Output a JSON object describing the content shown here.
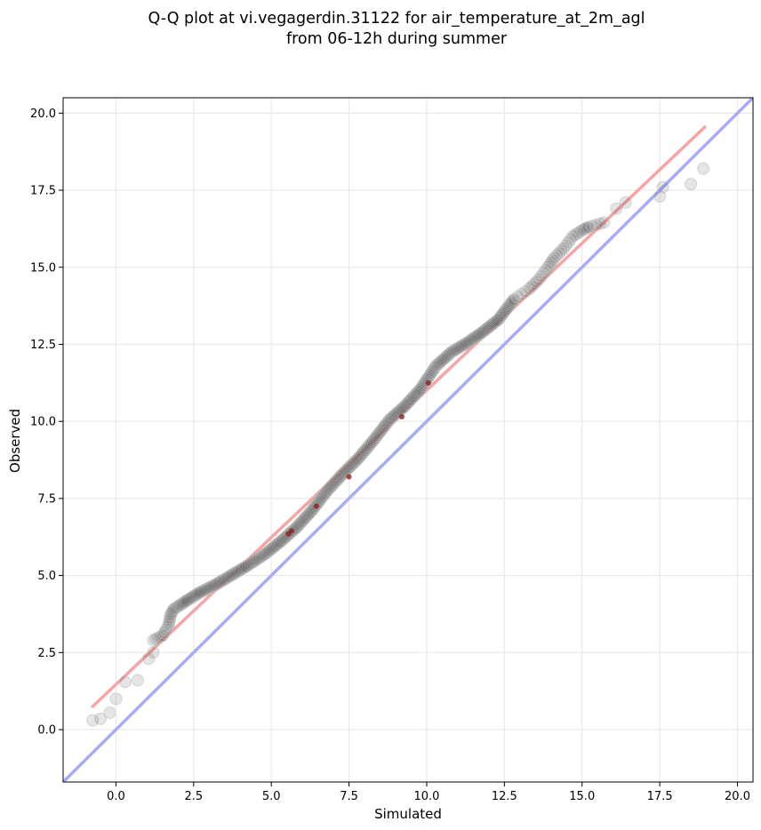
{
  "chart_data": {
    "type": "scatter",
    "title": [
      "Q-Q plot at vi.vegagerdin.31122 for air_temperature_at_2m_agl",
      "from 06-12h during summer"
    ],
    "xlabel": "Simulated",
    "ylabel": "Observed",
    "xlim": [
      -1.7,
      20.5
    ],
    "ylim": [
      -1.7,
      20.5
    ],
    "x_ticks": [
      0.0,
      2.5,
      5.0,
      7.5,
      10.0,
      12.5,
      15.0,
      17.5,
      20.0
    ],
    "x_tick_labels": [
      "0.0",
      "2.5",
      "5.0",
      "7.5",
      "10.0",
      "12.5",
      "15.0",
      "17.5",
      "20.0"
    ],
    "y_ticks": [
      0.0,
      2.5,
      5.0,
      7.5,
      10.0,
      12.5,
      15.0,
      17.5,
      20.0
    ],
    "y_tick_labels": [
      "0.0",
      "2.5",
      "5.0",
      "7.5",
      "10.0",
      "12.5",
      "15.0",
      "17.5",
      "20.0"
    ],
    "grid": true,
    "quantile_curve": [
      [
        -0.75,
        0.3
      ],
      [
        -0.5,
        0.35
      ],
      [
        -0.2,
        0.55
      ],
      [
        0.0,
        1.0
      ],
      [
        0.3,
        1.55
      ],
      [
        0.7,
        1.6
      ],
      [
        1.05,
        2.3
      ],
      [
        1.2,
        2.5
      ],
      [
        1.2,
        2.9
      ],
      [
        1.5,
        3.05
      ],
      [
        1.7,
        3.4
      ],
      [
        1.75,
        3.7
      ],
      [
        1.85,
        3.9
      ],
      [
        2.0,
        4.0
      ],
      [
        2.3,
        4.2
      ],
      [
        2.7,
        4.45
      ],
      [
        3.2,
        4.7
      ],
      [
        3.7,
        5.0
      ],
      [
        4.2,
        5.3
      ],
      [
        4.8,
        5.7
      ],
      [
        5.3,
        6.1
      ],
      [
        5.8,
        6.55
      ],
      [
        6.3,
        7.1
      ],
      [
        6.8,
        7.75
      ],
      [
        7.3,
        8.3
      ],
      [
        7.8,
        8.8
      ],
      [
        8.3,
        9.4
      ],
      [
        8.8,
        10.05
      ],
      [
        9.3,
        10.5
      ],
      [
        9.8,
        11.05
      ],
      [
        10.3,
        11.8
      ],
      [
        10.8,
        12.25
      ],
      [
        11.3,
        12.55
      ],
      [
        11.8,
        12.9
      ],
      [
        12.3,
        13.3
      ],
      [
        12.8,
        13.95
      ],
      [
        13.3,
        14.3
      ],
      [
        13.6,
        14.6
      ],
      [
        13.9,
        15.0
      ],
      [
        14.1,
        15.3
      ],
      [
        14.4,
        15.6
      ],
      [
        14.7,
        16.0
      ],
      [
        15.0,
        16.2
      ],
      [
        15.2,
        16.3
      ],
      [
        15.7,
        16.45
      ],
      [
        16.1,
        16.9
      ],
      [
        16.4,
        17.1
      ],
      [
        17.5,
        17.3
      ],
      [
        17.6,
        17.6
      ],
      [
        18.5,
        17.7
      ],
      [
        18.9,
        18.2
      ]
    ],
    "highlight_points": [
      [
        5.55,
        6.35
      ],
      [
        5.65,
        6.45
      ],
      [
        6.45,
        7.25
      ],
      [
        7.5,
        8.2
      ],
      [
        9.2,
        10.15
      ],
      [
        10.05,
        11.25
      ]
    ],
    "fit_line": {
      "x": [
        -0.75,
        18.95
      ],
      "y": [
        0.75,
        19.55
      ],
      "color": "#f4a5a5"
    },
    "identity_line": {
      "color": "#a9abf3"
    },
    "point_color": "#000000",
    "point_edge_color": "#bdbdbd"
  }
}
